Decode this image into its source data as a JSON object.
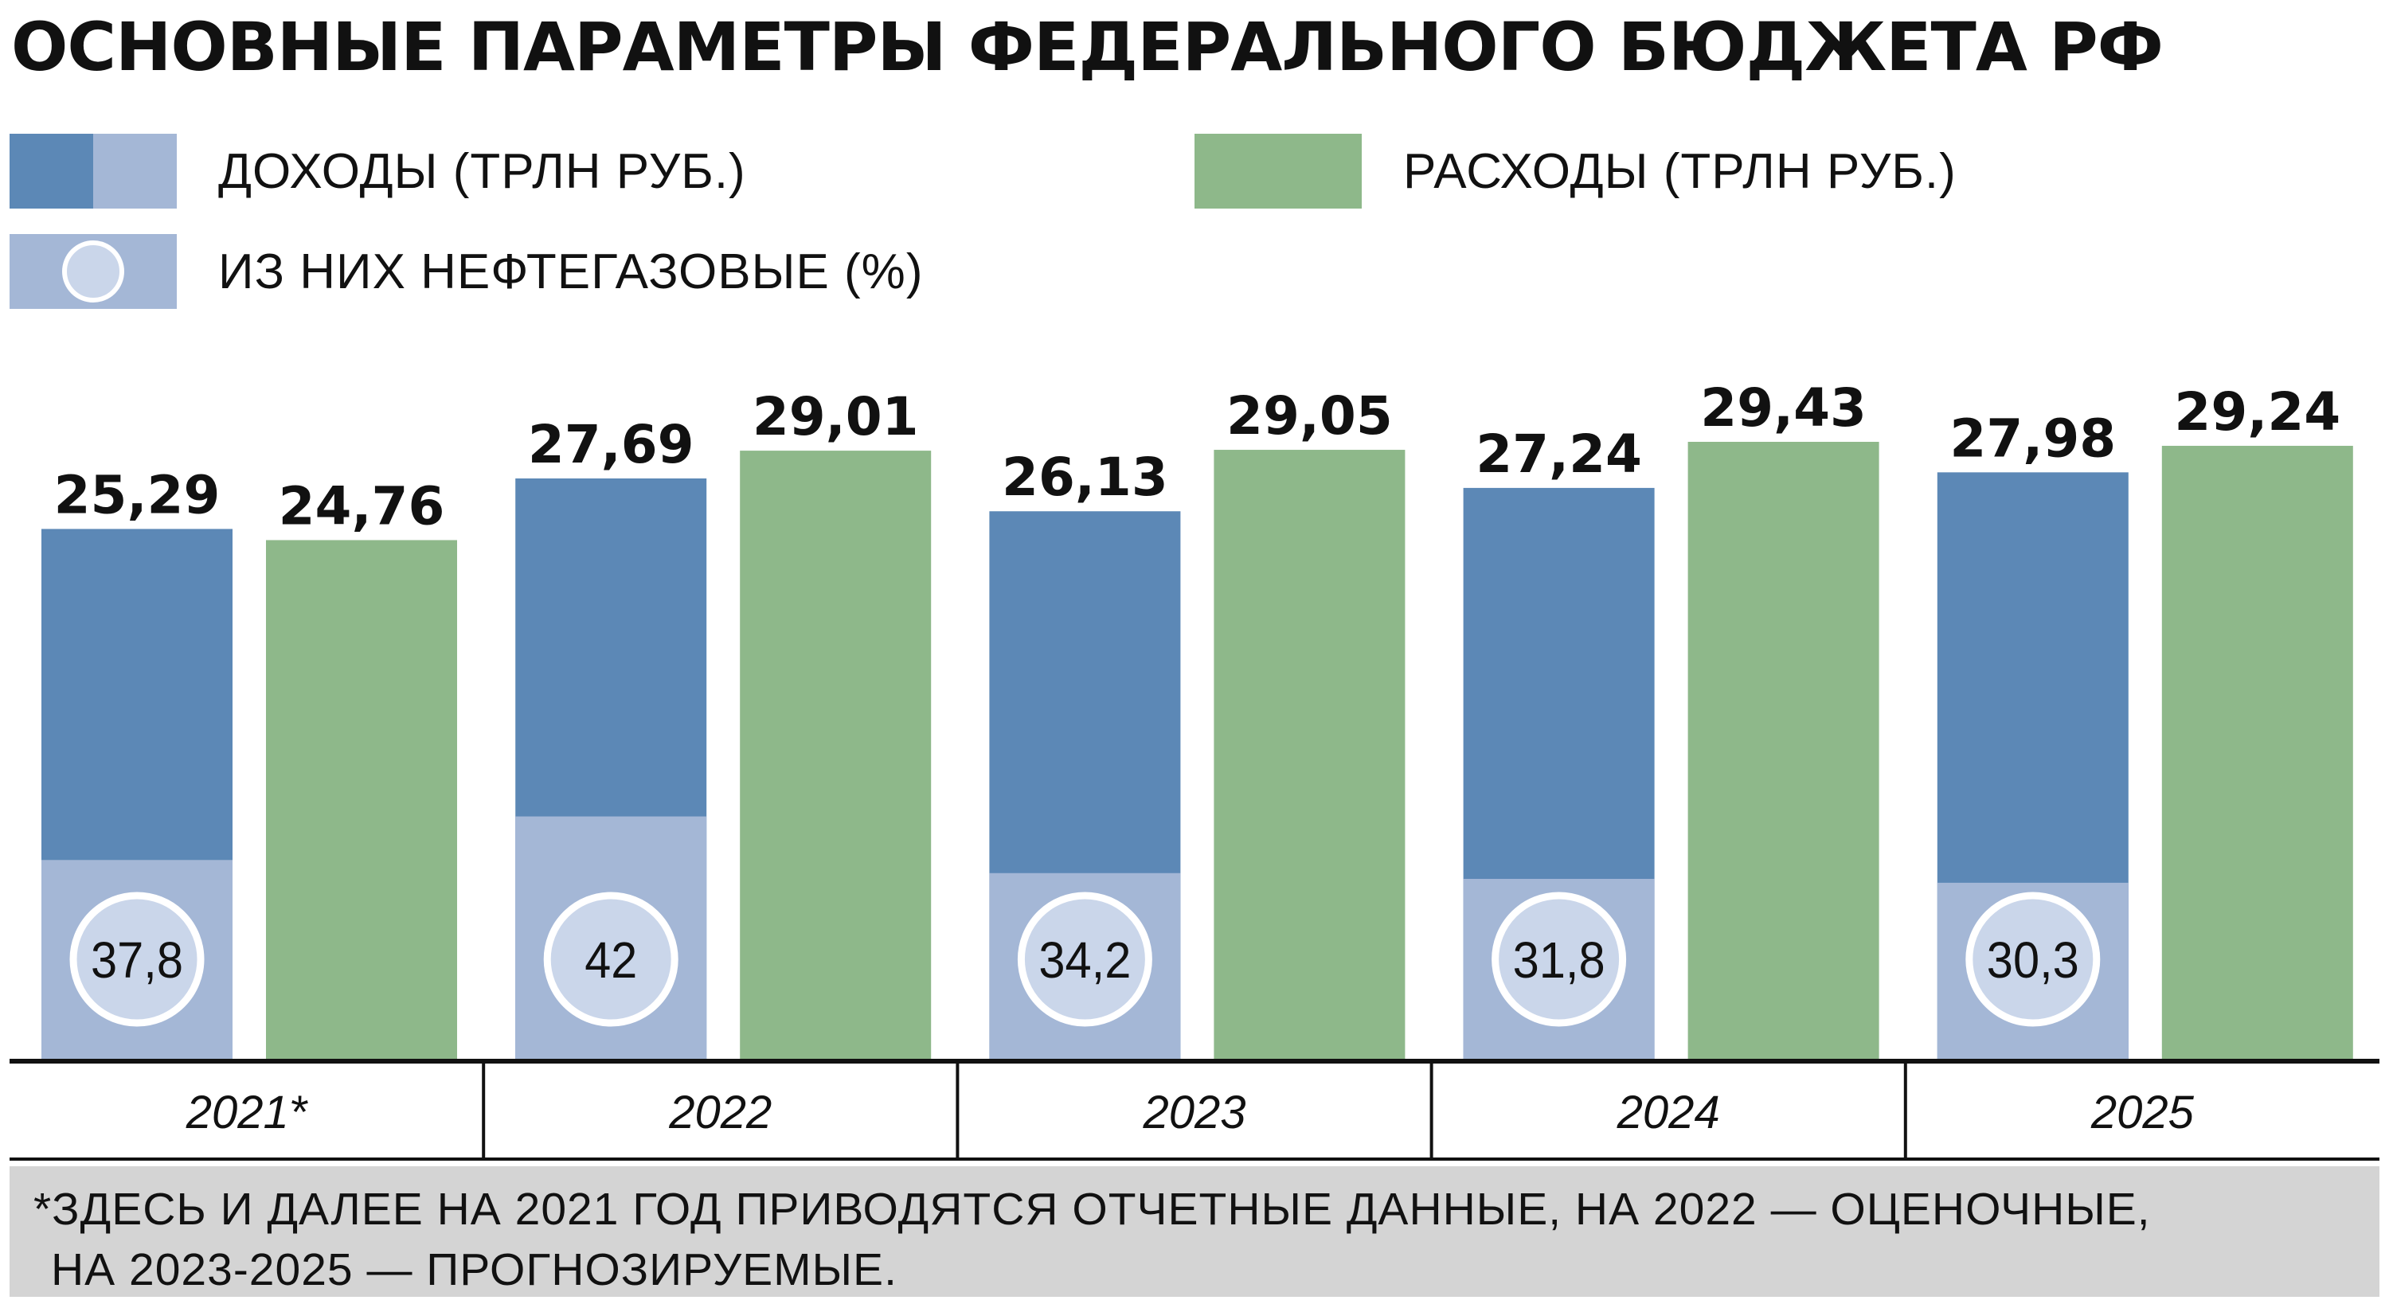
{
  "title": "ОСНОВНЫЕ ПАРАМЕТРЫ ФЕДЕРАЛЬНОГО БЮДЖЕТА РФ",
  "legend": {
    "income": "ДОХОДЫ (ТРЛН РУБ.)",
    "expense": "РАСХОДЫ (ТРЛН РУБ.)",
    "oil_gas": "ИЗ НИХ НЕФТЕГАЗОВЫЕ (%)"
  },
  "colors": {
    "income": "#5c88b6",
    "oil_gas": "#a4b7d6",
    "expense": "#8eb88a",
    "circle": "#cad6ea",
    "footnote_bg": "#d4d4d4"
  },
  "chart_data": {
    "type": "bar",
    "categories": [
      "2021*",
      "2022",
      "2023",
      "2024",
      "2025"
    ],
    "series": [
      {
        "name": "ДОХОДЫ (ТРЛН РУБ.)",
        "values": [
          25.29,
          27.69,
          26.13,
          27.24,
          27.98
        ]
      },
      {
        "name": "РАСХОДЫ (ТРЛН РУБ.)",
        "values": [
          24.76,
          29.01,
          29.05,
          29.43,
          29.24
        ]
      }
    ],
    "oil_gas_share_percent": [
      37.8,
      42,
      34.2,
      31.8,
      30.3
    ],
    "value_labels": {
      "income": [
        "25,29",
        "27,69",
        "26,13",
        "27,24",
        "27,98"
      ],
      "expense": [
        "24,76",
        "29,01",
        "29,05",
        "29,43",
        "29,24"
      ],
      "oil_gas": [
        "37,8",
        "42",
        "34,2",
        "31,8",
        "30,3"
      ]
    },
    "ylim": [
      0,
      29.43
    ],
    "grid": false
  },
  "footnote": {
    "line1": "*ЗДЕСЬ И ДАЛЕЕ НА 2021 ГОД ПРИВОДЯТСЯ ОТЧЕТНЫЕ ДАННЫЕ, НА 2022 — ОЦЕНОЧНЫЕ,",
    "line2": "НА 2023-2025 — ПРОГНОЗИРУЕМЫЕ."
  }
}
